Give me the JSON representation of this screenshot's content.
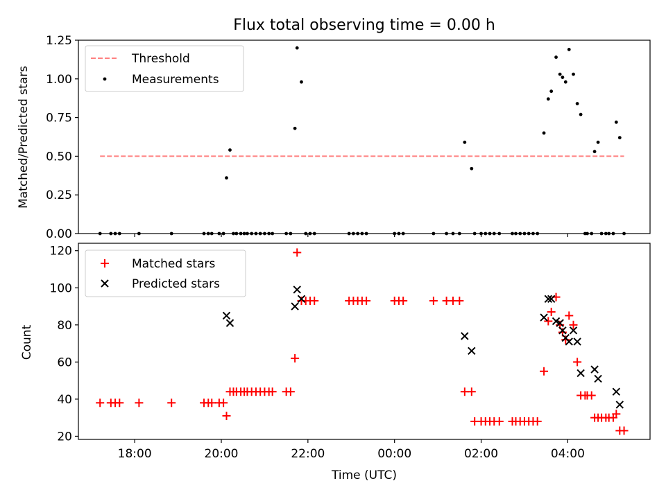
{
  "chart_data": [
    {
      "type": "scatter",
      "title": "Flux total observing time = 0.00 h",
      "ylabel": "Matched/Predicted stars",
      "ylim": [
        0,
        1.25
      ],
      "yticks": [
        "0.00",
        "0.25",
        "0.50",
        "0.75",
        "1.00",
        "1.25"
      ],
      "xlim": [
        -7.3,
        5.9
      ],
      "legend_position": "top-left",
      "threshold": {
        "name": "Threshold",
        "value": 0.5,
        "x_range": [
          -6.8,
          5.3
        ],
        "color": "#ff8080"
      },
      "series": [
        {
          "name": "Measurements",
          "color": "#000000",
          "x": [
            -6.8,
            -6.55,
            -6.45,
            -6.35,
            -5.9,
            -5.15,
            -4.4,
            -4.3,
            -4.22,
            -4.05,
            -3.95,
            -3.88,
            -3.8,
            -3.72,
            -3.65,
            -3.55,
            -3.47,
            -3.4,
            -3.3,
            -3.2,
            -3.1,
            -3.0,
            -2.9,
            -2.82,
            -2.5,
            -2.4,
            -2.3,
            -2.25,
            -2.15,
            -2.05,
            -1.95,
            -1.85,
            -1.05,
            -0.95,
            -0.85,
            -0.75,
            -0.65,
            0.0,
            0.1,
            0.2,
            0.9,
            1.2,
            1.35,
            1.5,
            1.62,
            1.78,
            1.85,
            2.0,
            2.1,
            2.2,
            2.3,
            2.42,
            2.72,
            2.8,
            2.9,
            3.0,
            3.1,
            3.2,
            3.3,
            3.45,
            3.55,
            3.62,
            3.73,
            3.82,
            3.88,
            3.95,
            4.03,
            4.13,
            4.22,
            4.3,
            4.4,
            4.45,
            4.55,
            4.62,
            4.7,
            4.78,
            4.88,
            4.95,
            5.05,
            5.12,
            5.2,
            5.3
          ],
          "y": [
            0,
            0,
            0,
            0,
            0,
            0,
            0,
            0,
            0,
            0,
            0,
            0.36,
            0.54,
            0,
            0,
            0,
            0,
            0,
            0,
            0,
            0,
            0,
            0,
            0,
            0,
            0,
            0.68,
            1.2,
            0.98,
            0,
            0,
            0,
            0,
            0,
            0,
            0,
            0,
            0,
            0,
            0,
            0,
            0,
            0,
            0,
            0.59,
            0.42,
            0,
            0,
            0,
            0,
            0,
            0,
            0,
            0,
            0,
            0,
            0,
            0,
            0,
            0.65,
            0.87,
            0.92,
            1.14,
            1.03,
            1.01,
            0.98,
            1.19,
            1.03,
            0.84,
            0.77,
            0,
            0,
            0,
            0.53,
            0.59,
            0,
            0,
            0,
            0,
            0.72,
            0.62,
            0
          ]
        }
      ]
    },
    {
      "type": "scatter",
      "ylabel": "Count",
      "xlabel": "Time (UTC)",
      "ylim": [
        18.3,
        124
      ],
      "yticks": [
        "20",
        "40",
        "60",
        "80",
        "100",
        "120"
      ],
      "xlim": [
        -7.3,
        5.9
      ],
      "xticks": [
        {
          "value": -6,
          "label": "18:00"
        },
        {
          "value": -4,
          "label": "20:00"
        },
        {
          "value": -2,
          "label": "22:00"
        },
        {
          "value": 0,
          "label": "00:00"
        },
        {
          "value": 2,
          "label": "02:00"
        },
        {
          "value": 4,
          "label": "04:00"
        }
      ],
      "legend_position": "top-left",
      "series": [
        {
          "name": "Matched stars",
          "marker": "+",
          "color": "#ff0000",
          "x": [
            -6.8,
            -6.55,
            -6.45,
            -6.35,
            -5.9,
            -5.15,
            -4.4,
            -4.3,
            -4.22,
            -4.05,
            -3.95,
            -3.88,
            -3.8,
            -3.72,
            -3.65,
            -3.55,
            -3.47,
            -3.4,
            -3.3,
            -3.2,
            -3.1,
            -3.0,
            -2.9,
            -2.82,
            -2.5,
            -2.4,
            -2.3,
            -2.25,
            -2.15,
            -2.05,
            -1.95,
            -1.85,
            -1.05,
            -0.95,
            -0.85,
            -0.75,
            -0.65,
            0.0,
            0.1,
            0.2,
            0.9,
            1.2,
            1.35,
            1.5,
            1.62,
            1.78,
            1.85,
            2.0,
            2.1,
            2.2,
            2.3,
            2.42,
            2.72,
            2.8,
            2.9,
            3.0,
            3.1,
            3.2,
            3.3,
            3.45,
            3.55,
            3.62,
            3.73,
            3.82,
            3.88,
            3.95,
            4.03,
            4.13,
            4.22,
            4.3,
            4.4,
            4.45,
            4.55,
            4.62,
            4.7,
            4.78,
            4.88,
            4.95,
            5.05,
            5.12,
            5.2,
            5.3
          ],
          "y": [
            38,
            38,
            38,
            38,
            38,
            38,
            38,
            38,
            38,
            38,
            38,
            31,
            44,
            44,
            44,
            44,
            44,
            44,
            44,
            44,
            44,
            44,
            44,
            44,
            44,
            44,
            62,
            119,
            93,
            93,
            93,
            93,
            93,
            93,
            93,
            93,
            93,
            93,
            93,
            93,
            93,
            93,
            93,
            93,
            44,
            44,
            28,
            28,
            28,
            28,
            28,
            28,
            28,
            28,
            28,
            28,
            28,
            28,
            28,
            55,
            82,
            87,
            95,
            80,
            76,
            72,
            85,
            80,
            60,
            42,
            42,
            42,
            42,
            30,
            30,
            30,
            30,
            30,
            30,
            32,
            23,
            23
          ]
        },
        {
          "name": "Predicted stars",
          "marker": "x",
          "color": "#000000",
          "x": [
            -3.88,
            -3.8,
            -2.3,
            -2.25,
            -2.15,
            1.62,
            1.78,
            3.45,
            3.55,
            3.62,
            3.73,
            3.82,
            3.88,
            3.95,
            4.03,
            4.13,
            4.22,
            4.3,
            4.62,
            4.7,
            5.12,
            5.2
          ],
          "y": [
            85,
            81,
            90,
            99,
            94,
            74,
            66,
            84,
            94,
            94,
            82,
            81,
            77,
            73,
            71,
            77,
            71,
            54,
            56,
            51,
            44,
            37
          ]
        }
      ]
    }
  ]
}
